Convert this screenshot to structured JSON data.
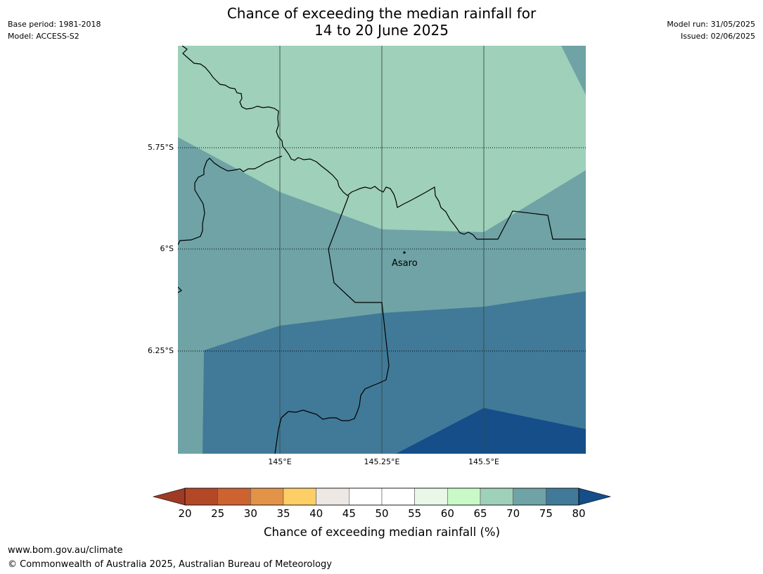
{
  "header": {
    "title_line1": "Chance of exceeding the median rainfall for",
    "title_line2": "14 to 20 June 2025",
    "base_period": "Base period: 1981-2018",
    "model": "Model: ACCESS-S2",
    "model_run": "Model run: 31/05/2025",
    "issued": "Issued: 02/06/2025"
  },
  "map": {
    "lat_labels": [
      "5.75°S",
      "6°S",
      "6.25°S"
    ],
    "lon_labels": [
      "145°E",
      "145.25°E",
      "145.5°E"
    ],
    "place": "Asaro",
    "colors": {
      "band_65_70": "#9ed0ba",
      "band_70_75": "#6fa3a6",
      "band_75_80": "#417a98",
      "band_above_80": "#154e89",
      "border": "#000000"
    }
  },
  "colorbar": {
    "ticks": [
      "20",
      "25",
      "30",
      "35",
      "40",
      "45",
      "50",
      "55",
      "60",
      "65",
      "70",
      "75",
      "80"
    ],
    "label": "Chance of exceeding median rainfall (%)",
    "colors": [
      "#9e3a26",
      "#b24826",
      "#cd6330",
      "#e29347",
      "#fece67",
      "#ede8e4",
      "#ffffff",
      "#ffffff",
      "#e8f7e8",
      "#caf9c8",
      "#9ed0ba",
      "#6fa3a6",
      "#417a98",
      "#154e89"
    ]
  },
  "footer": {
    "url": "www.bom.gov.au/climate",
    "copyright": "© Commonwealth of Australia 2025, Australian Bureau of Meteorology"
  }
}
